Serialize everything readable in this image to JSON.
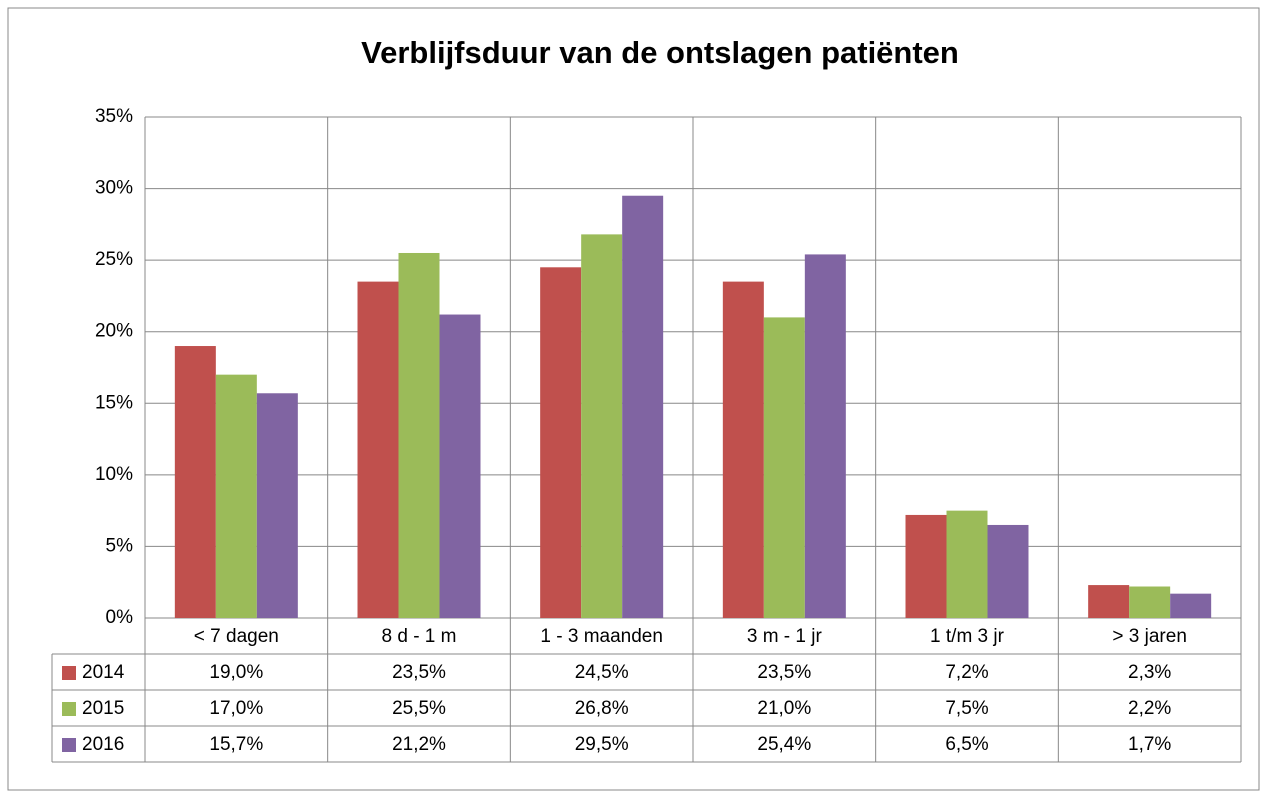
{
  "chart_data": {
    "type": "bar",
    "title": "Verblijfsduur van de ontslagen patiënten",
    "categories": [
      "< 7 dagen",
      "8 d - 1 m",
      "1 - 3 maanden",
      "3 m - 1 jr",
      "1 t/m 3 jr",
      "> 3 jaren"
    ],
    "series": [
      {
        "name": "2014",
        "color": "#c0504d",
        "values": [
          19.0,
          23.5,
          24.5,
          23.5,
          7.2,
          2.3
        ],
        "value_labels": [
          "19,0%",
          "23,5%",
          "24,5%",
          "23,5%",
          "7,2%",
          "2,3%"
        ]
      },
      {
        "name": "2015",
        "color": "#9bbb59",
        "values": [
          17.0,
          25.5,
          26.8,
          21.0,
          7.5,
          2.2
        ],
        "value_labels": [
          "17,0%",
          "25,5%",
          "26,8%",
          "21,0%",
          "7,5%",
          "2,2%"
        ]
      },
      {
        "name": "2016",
        "color": "#8064a2",
        "values": [
          15.7,
          21.2,
          29.5,
          25.4,
          6.5,
          1.7
        ],
        "value_labels": [
          "15,7%",
          "21,2%",
          "29,5%",
          "25,4%",
          "6,5%",
          "1,7%"
        ]
      }
    ],
    "ylim": [
      0,
      35
    ],
    "yticks": [
      {
        "value": 0,
        "label": "0%"
      },
      {
        "value": 5,
        "label": "5%"
      },
      {
        "value": 10,
        "label": "10%"
      },
      {
        "value": 15,
        "label": "15%"
      },
      {
        "value": 20,
        "label": "20%"
      },
      {
        "value": 25,
        "label": "25%"
      },
      {
        "value": 30,
        "label": "30%"
      },
      {
        "value": 35,
        "label": "35%"
      }
    ],
    "grid": true
  }
}
